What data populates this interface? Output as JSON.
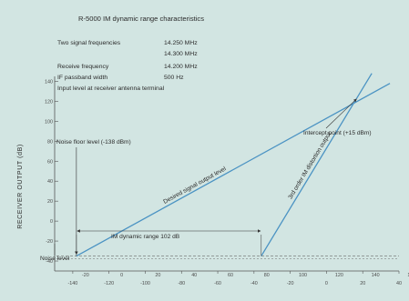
{
  "chart_data": {
    "type": "line",
    "title": "R-5000 IM dynamic range characteristics",
    "info_lines": [
      {
        "label": "Two signal frequencies",
        "value": "14.250 MHz"
      },
      {
        "label": "",
        "value": "14.300 MHz"
      },
      {
        "label": "Receive frequency",
        "value": "14.200 MHz"
      },
      {
        "label": "IF passband width",
        "value": "500 Hz"
      },
      {
        "label": "Input level at receiver antenna terminal",
        "value": ""
      }
    ],
    "ylabel": "RECEIVER OUTPUT (dB)",
    "y_ticks": [
      "140",
      "120",
      "100",
      "80",
      "60",
      "40",
      "20",
      "0",
      "-20",
      "-40"
    ],
    "ylim": [
      -50,
      145
    ],
    "x_ticks_upper": [
      "-20",
      "0",
      "20",
      "40",
      "60",
      "80",
      "100",
      "120",
      "140",
      "160"
    ],
    "x_unit_upper": "(dBu)",
    "x_ticks_lower": [
      "-140",
      "-120",
      "-100",
      "-80",
      "-60",
      "-40",
      "-20",
      "0",
      "20",
      "40"
    ],
    "x_unit_lower": "dBm)",
    "xlim_dbm": [
      -150,
      40
    ],
    "noise_level_y": -35,
    "series": [
      {
        "name": "Desired signal output level",
        "x": [
          -138,
          35
        ],
        "y": [
          -35,
          138
        ]
      },
      {
        "name": "3rd order IM distortion output",
        "x": [
          -36,
          25
        ],
        "y": [
          -35,
          148
        ]
      }
    ],
    "annotations": {
      "noise_floor": "Noise floor level (-138 dBm)",
      "intercept": "Intercept point (+15 dBm)",
      "im_range": "IM dynamic range 102 dB",
      "noise_level": "Noise level"
    },
    "colors": {
      "line": "#4b93c3",
      "axis": "#555555",
      "background": "#d2e5e2"
    }
  }
}
